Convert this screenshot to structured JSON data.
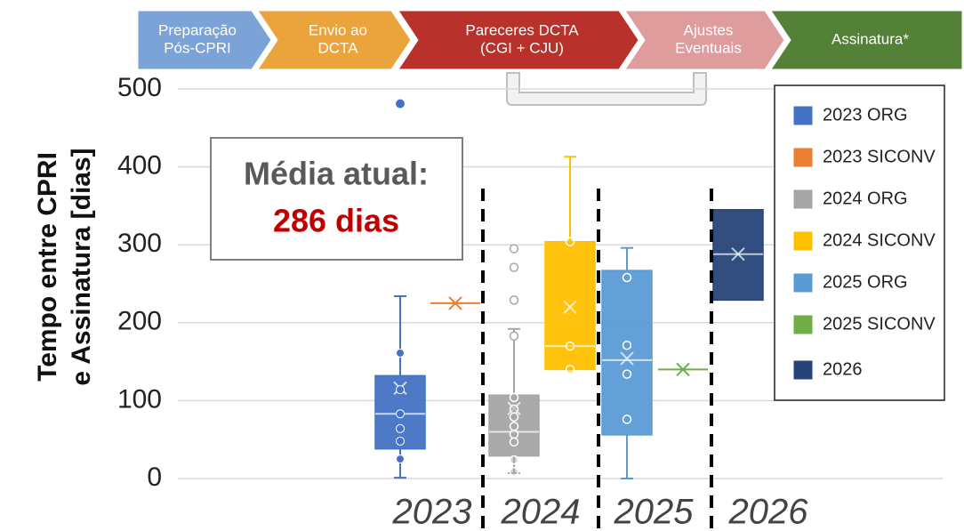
{
  "chart_data": {
    "type": "box",
    "process": [
      {
        "lines": [
          "Preparação",
          "Pós-CPRI"
        ],
        "color": "#7ba3d7"
      },
      {
        "lines": [
          "Envio ao",
          "DCTA"
        ],
        "color": "#eba33b"
      },
      {
        "lines": [
          "Pareceres DCTA",
          "(CGI + CJU)"
        ],
        "color": "#b9312b"
      },
      {
        "lines": [
          "Ajustes",
          "Eventuais"
        ],
        "color": "#de9c9c"
      },
      {
        "lines": [
          "Assinatura*"
        ],
        "color": "#538135"
      }
    ],
    "annotation": [
      "Média atual:",
      "286 dias"
    ],
    "ylabel": [
      "Tempo entre CPRI",
      "e Assinatura [dias]"
    ],
    "categories": [
      "2023",
      "2024",
      "2025",
      "2026"
    ],
    "ylim": [
      0,
      500
    ],
    "yticks": [
      0,
      100,
      200,
      300,
      400,
      500
    ],
    "grid": true,
    "legend": "top-right",
    "series": [
      {
        "name": "2023 ORG",
        "color": "#4472c4",
        "hollow": false,
        "whisker_low": 1,
        "q1": 38,
        "median": 83,
        "q3": 132,
        "whisker_high": 234,
        "mean": 116,
        "points": [
          161,
          114,
          83,
          64,
          48,
          25
        ],
        "outliers": [
          481
        ]
      },
      {
        "name": "2023 SICONV",
        "color": "#ed7d31",
        "hollow": false,
        "median": 225,
        "mean": 225,
        "points": [],
        "outliers": []
      },
      {
        "name": "2024 ORG",
        "color": "#a5a5a5",
        "hollow": true,
        "whisker_low": 7,
        "q1": 29,
        "median": 60,
        "q3": 107,
        "whisker_high": 192,
        "mean": 90,
        "points": [
          104,
          89,
          79,
          67,
          57,
          47,
          24,
          9
        ],
        "outliers": [
          183,
          229,
          271,
          295
        ]
      },
      {
        "name": "2024 SICONV",
        "color": "#ffc000",
        "hollow": true,
        "q1": 140,
        "median": 170,
        "q3": 304,
        "whisker_high": 413,
        "mean": 220,
        "points": [
          304,
          170,
          140
        ],
        "outliers": []
      },
      {
        "name": "2025 ORG",
        "color": "#5b9bd5",
        "hollow": true,
        "whisker_low": 0,
        "q1": 56,
        "median": 152,
        "q3": 267,
        "whisker_high": 296,
        "mean": 154,
        "points": [
          258,
          171,
          134,
          76
        ],
        "outliers": []
      },
      {
        "name": "2025 SICONV",
        "color": "#70ad47",
        "hollow": false,
        "median": 140,
        "mean": 140,
        "points": [],
        "outliers": []
      },
      {
        "name": "2026",
        "color": "#264478",
        "hollow": false,
        "q1": 229,
        "median": 288,
        "q3": 345,
        "mean": 288,
        "points": [],
        "outliers": []
      }
    ]
  }
}
